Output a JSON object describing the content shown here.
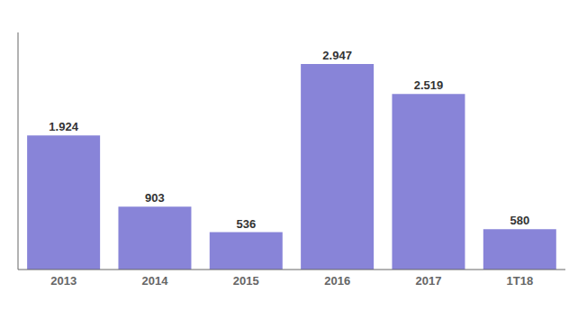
{
  "chart_data": {
    "type": "bar",
    "categories": [
      "2013",
      "2014",
      "2015",
      "2016",
      "2017",
      "1T18"
    ],
    "values": [
      1924,
      903,
      536,
      2947,
      2519,
      580
    ],
    "value_labels": [
      "1.924",
      "903",
      "536",
      "2.947",
      "2.519",
      "580"
    ],
    "data_labels": true,
    "color": "#8884d8",
    "ylim": [
      0,
      3400
    ],
    "tick_labels": "x",
    "grid": false
  }
}
